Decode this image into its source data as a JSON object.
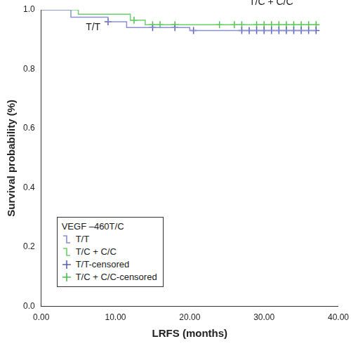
{
  "chart_data": {
    "type": "line",
    "x_label": "LRFS (months)",
    "y_label": "Survival probability (%)",
    "legend_title": "VEGF –460T/C",
    "legend": "bottom-left",
    "grid": false,
    "xlim": [
      0,
      40
    ],
    "xticks": [
      {
        "value": 0,
        "label": "0.00"
      },
      {
        "value": 10,
        "label": "10.00"
      },
      {
        "value": 20,
        "label": "20.00"
      },
      {
        "value": 30,
        "label": "30.00"
      },
      {
        "value": 40,
        "label": "40.00"
      }
    ],
    "ylim": [
      0,
      1
    ],
    "yticks": [
      {
        "value": 0,
        "label": "0.0"
      },
      {
        "value": 0.2,
        "label": "0.2"
      },
      {
        "value": 0.4,
        "label": "0.4"
      },
      {
        "value": 0.6,
        "label": "0.6"
      },
      {
        "value": 0.8,
        "label": "0.8"
      },
      {
        "value": 1,
        "label": "1.0"
      }
    ],
    "annotations": [
      {
        "text": "T/T",
        "x": 6,
        "y": 0.925
      },
      {
        "text": "T/C + C/C",
        "x": 28,
        "y": 1.01
      }
    ],
    "series": [
      {
        "name": "T/T",
        "type": "line",
        "line_style": "step",
        "color": "#8a8ed2",
        "x": [
          0,
          4,
          9,
          11.5,
          20,
          37
        ],
        "values": [
          1,
          0.975,
          0.96,
          0.94,
          0.93,
          0.93
        ]
      },
      {
        "name": "T/C + C/C",
        "type": "line",
        "line_style": "step",
        "color": "#6ccf6c",
        "x": [
          0,
          5,
          12,
          14,
          37
        ],
        "values": [
          1,
          0.985,
          0.965,
          0.95,
          0.95
        ]
      },
      {
        "name": "T/T-censored",
        "type": "scatter",
        "marker": "cross",
        "color": "#5b5fb8",
        "x": [
          9,
          15,
          18,
          20.5,
          27,
          28,
          29,
          30,
          31,
          32,
          33,
          34,
          35,
          36,
          37
        ],
        "values": [
          0.96,
          0.94,
          0.94,
          0.93,
          0.93,
          0.93,
          0.93,
          0.93,
          0.93,
          0.93,
          0.93,
          0.93,
          0.93,
          0.93,
          0.93
        ]
      },
      {
        "name": "T/C + C/C-censored",
        "type": "scatter",
        "marker": "cross",
        "color": "#4cbf4c",
        "x": [
          12.5,
          15,
          16,
          18,
          24,
          26,
          27,
          29,
          30,
          31,
          32,
          33,
          34,
          35,
          36,
          37
        ],
        "values": [
          0.965,
          0.95,
          0.95,
          0.95,
          0.95,
          0.95,
          0.95,
          0.95,
          0.95,
          0.95,
          0.95,
          0.95,
          0.95,
          0.95,
          0.95,
          0.95
        ]
      }
    ]
  }
}
